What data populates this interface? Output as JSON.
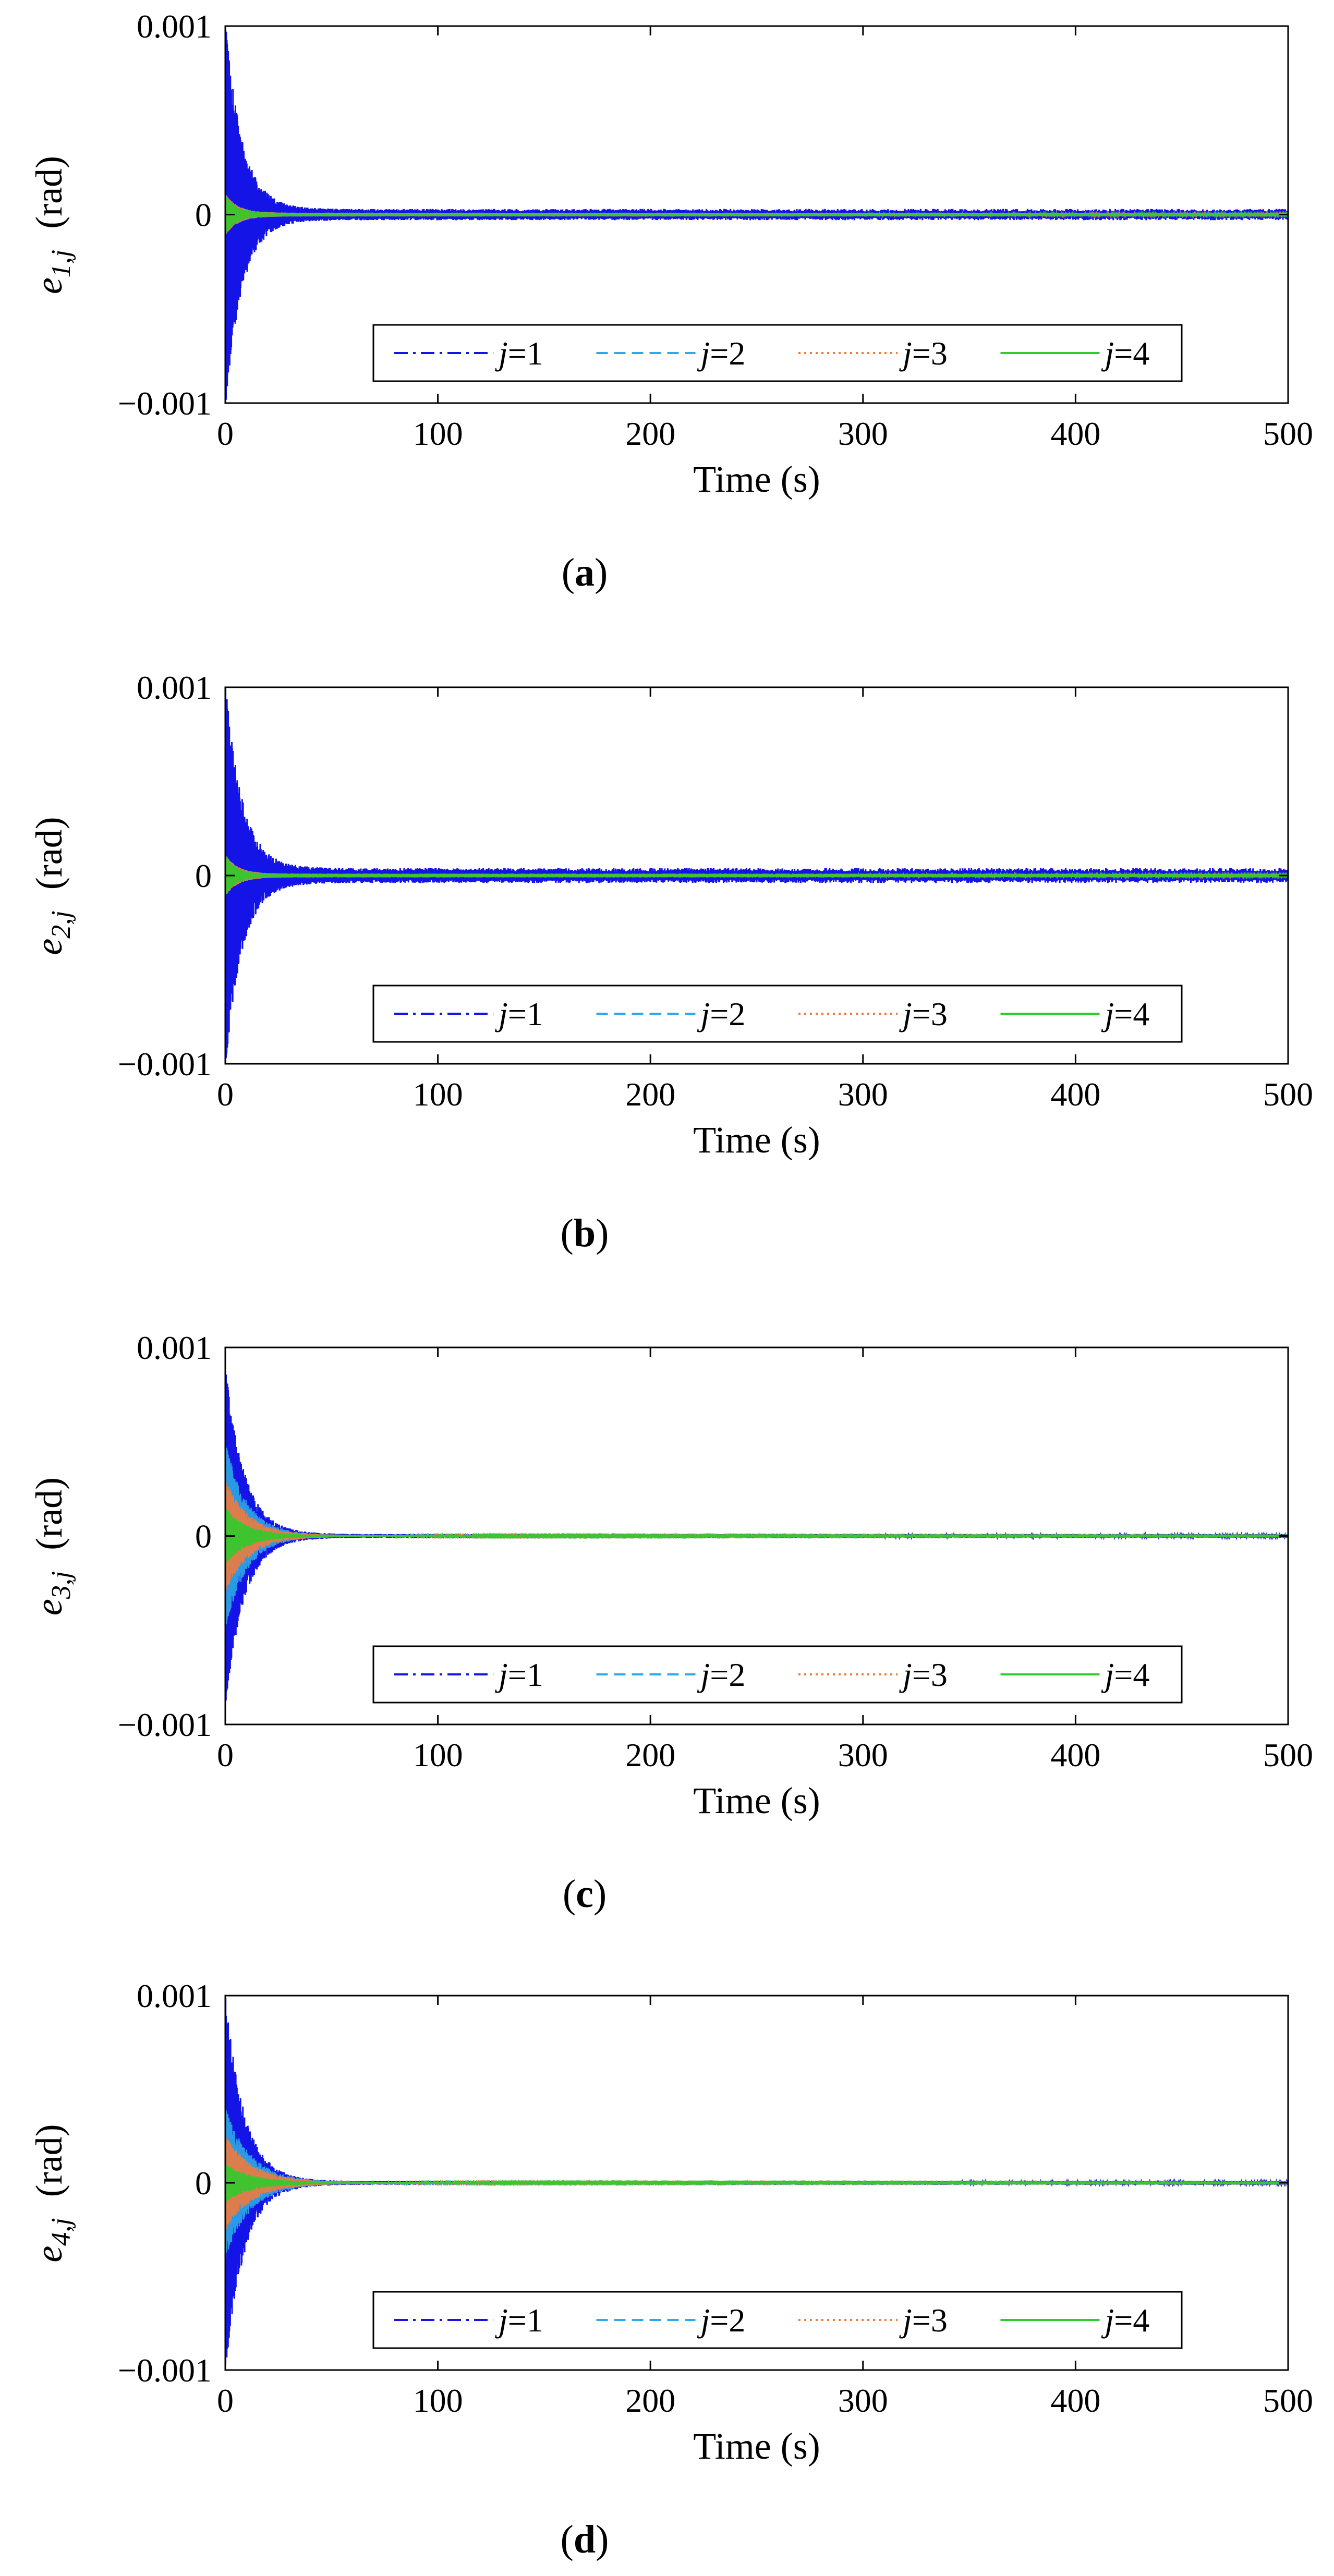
{
  "colors": {
    "series_j1": "#1414e6",
    "series_j2": "#2ea8e6",
    "series_j3": "#f07a3c",
    "series_j4": "#2ecc2e",
    "axes": "#000000"
  },
  "chart_data": [
    {
      "type": "line",
      "panel": "a",
      "caption_letter": "a",
      "title": "",
      "xlabel": "Time (s)",
      "ylabel_main": "e",
      "ylabel_sub": "1,j",
      "ylabel_unit": "(rad)",
      "xlim": [
        0,
        500
      ],
      "ylim": [
        -0.001,
        0.001
      ],
      "xticks": [
        0,
        100,
        200,
        300,
        400,
        500
      ],
      "yticks": [
        -0.001,
        0,
        0.001
      ],
      "xtick_labels": [
        "0",
        "100",
        "200",
        "300",
        "400",
        "500"
      ],
      "ytick_labels": [
        "−0.001",
        "0",
        "0.001"
      ],
      "legend": {
        "position": "bottom-center",
        "entries": [
          {
            "var": "j",
            "eq": "=1",
            "style": "dashdot"
          },
          {
            "var": "j",
            "eq": "=2",
            "style": "dashed"
          },
          {
            "var": "j",
            "eq": "=3",
            "style": "dotted"
          },
          {
            "var": "j",
            "eq": "=4",
            "style": "solid"
          }
        ]
      },
      "series": [
        {
          "name": "j=1",
          "initial_amplitude": 0.001,
          "decay_time": 8,
          "residual": 3e-05
        },
        {
          "name": "j=2",
          "initial_amplitude": 0.0001,
          "decay_time": 6,
          "residual": 1e-05
        },
        {
          "name": "j=3",
          "initial_amplitude": 0.0001,
          "decay_time": 6,
          "residual": 1e-05
        },
        {
          "name": "j=4",
          "initial_amplitude": 0.0001,
          "decay_time": 5,
          "residual": 1e-05
        }
      ]
    },
    {
      "type": "line",
      "panel": "b",
      "caption_letter": "b",
      "title": "",
      "xlabel": "Time (s)",
      "ylabel_main": "e",
      "ylabel_sub": "2,j",
      "ylabel_unit": "(rad)",
      "xlim": [
        0,
        500
      ],
      "ylim": [
        -0.001,
        0.001
      ],
      "xticks": [
        0,
        100,
        200,
        300,
        400,
        500
      ],
      "yticks": [
        -0.001,
        0,
        0.001
      ],
      "xtick_labels": [
        "0",
        "100",
        "200",
        "300",
        "400",
        "500"
      ],
      "ytick_labels": [
        "−0.001",
        "0",
        "0.001"
      ],
      "legend": {
        "position": "bottom-center",
        "entries": [
          {
            "var": "j",
            "eq": "=1",
            "style": "dashdot"
          },
          {
            "var": "j",
            "eq": "=2",
            "style": "dashed"
          },
          {
            "var": "j",
            "eq": "=3",
            "style": "dotted"
          },
          {
            "var": "j",
            "eq": "=4",
            "style": "solid"
          }
        ]
      },
      "series": [
        {
          "name": "j=1",
          "initial_amplitude": 0.001,
          "decay_time": 8,
          "residual": 4e-05
        },
        {
          "name": "j=2",
          "initial_amplitude": 0.0001,
          "decay_time": 6,
          "residual": 1e-05
        },
        {
          "name": "j=3",
          "initial_amplitude": 0.0001,
          "decay_time": 6,
          "residual": 1e-05
        },
        {
          "name": "j=4",
          "initial_amplitude": 0.0001,
          "decay_time": 5,
          "residual": 1e-05
        }
      ]
    },
    {
      "type": "line",
      "panel": "c",
      "caption_letter": "c",
      "title": "",
      "xlabel": "Time (s)",
      "ylabel_main": "e",
      "ylabel_sub": "3,j",
      "ylabel_unit": "(rad)",
      "xlim": [
        0,
        500
      ],
      "ylim": [
        -0.001,
        0.001
      ],
      "xticks": [
        0,
        100,
        200,
        300,
        400,
        500
      ],
      "yticks": [
        -0.001,
        0,
        0.001
      ],
      "xtick_labels": [
        "0",
        "100",
        "200",
        "300",
        "400",
        "500"
      ],
      "ytick_labels": [
        "−0.001",
        "0",
        "0.001"
      ],
      "legend": {
        "position": "bottom-center",
        "entries": [
          {
            "var": "j",
            "eq": "=1",
            "style": "dashdot"
          },
          {
            "var": "j",
            "eq": "=2",
            "style": "dashed"
          },
          {
            "var": "j",
            "eq": "=3",
            "style": "dotted"
          },
          {
            "var": "j",
            "eq": "=4",
            "style": "solid"
          }
        ]
      },
      "series": [
        {
          "name": "j=1",
          "initial_amplitude": 0.0009,
          "decay_time": 9,
          "residual": 1e-05
        },
        {
          "name": "j=2",
          "initial_amplitude": 0.0005,
          "decay_time": 10,
          "residual": 5e-06
        },
        {
          "name": "j=3",
          "initial_amplitude": 0.0003,
          "decay_time": 11,
          "residual": 5e-06
        },
        {
          "name": "j=4",
          "initial_amplitude": 0.00015,
          "decay_time": 10,
          "residual": 5e-06
        }
      ]
    },
    {
      "type": "line",
      "panel": "d",
      "caption_letter": "d",
      "title": "",
      "xlabel": "Time (s)",
      "ylabel_main": "e",
      "ylabel_sub": "4,j",
      "ylabel_unit": "(rad)",
      "xlim": [
        0,
        500
      ],
      "ylim": [
        -0.001,
        0.001
      ],
      "xticks": [
        0,
        100,
        200,
        300,
        400,
        500
      ],
      "yticks": [
        -0.001,
        0,
        0.001
      ],
      "xtick_labels": [
        "0",
        "100",
        "200",
        "300",
        "400",
        "500"
      ],
      "ytick_labels": [
        "−0.001",
        "0",
        "0.001"
      ],
      "legend": {
        "position": "bottom-center",
        "entries": [
          {
            "var": "j",
            "eq": "=1",
            "style": "dashdot"
          },
          {
            "var": "j",
            "eq": "=2",
            "style": "dashed"
          },
          {
            "var": "j",
            "eq": "=3",
            "style": "dotted"
          },
          {
            "var": "j",
            "eq": "=4",
            "style": "solid"
          }
        ]
      },
      "series": [
        {
          "name": "j=1",
          "initial_amplitude": 0.001,
          "decay_time": 9,
          "residual": 1e-05
        },
        {
          "name": "j=2",
          "initial_amplitude": 0.0004,
          "decay_time": 12,
          "residual": 5e-06
        },
        {
          "name": "j=3",
          "initial_amplitude": 0.00025,
          "decay_time": 13,
          "residual": 5e-06
        },
        {
          "name": "j=4",
          "initial_amplitude": 0.0001,
          "decay_time": 12,
          "residual": 5e-06
        }
      ]
    }
  ]
}
